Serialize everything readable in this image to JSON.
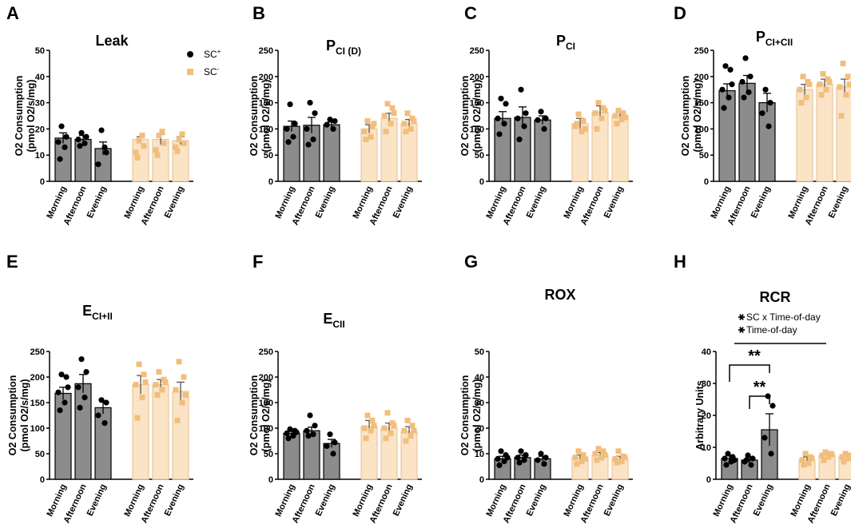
{
  "figure": {
    "categories": [
      "Morning",
      "Afternoon",
      "Evening",
      "Morning",
      "Afternoon",
      "Evening"
    ],
    "legend": [
      {
        "label": "SC",
        "sup": "+",
        "color": "#000000"
      },
      {
        "label": "SC",
        "sup": "-",
        "color": "#F2BE7C"
      }
    ],
    "colors": {
      "sc_plus_bar": "#8C8C8C",
      "sc_minus_bar": "#FBE3C6",
      "sc_plus_dot": "#000000",
      "sc_minus_dot": "#F2BE7C"
    }
  },
  "chart_data": [
    {
      "panel": "A",
      "type": "bar",
      "title": "Leak",
      "title_sub": "",
      "ylabel": [
        "O2 Consumption",
        "(pmol O2/s/mg)"
      ],
      "ylim": [
        0,
        50
      ],
      "yticks": [
        0,
        10,
        20,
        30,
        40,
        50
      ],
      "values": [
        16.5,
        16,
        12.5,
        16,
        16,
        15.5
      ],
      "errors": [
        2,
        1.5,
        2.5,
        1,
        2,
        1.5
      ],
      "points": [
        [
          21,
          17,
          15,
          13,
          8.5
        ],
        [
          18.5,
          17,
          16,
          14.5,
          13.5
        ],
        [
          19.5,
          11,
          6.5,
          13
        ],
        [
          15.5,
          13.5,
          11,
          17.5,
          9
        ],
        [
          17.5,
          14.5,
          12,
          19,
          10
        ],
        [
          16,
          14.5,
          13,
          18,
          11.5
        ]
      ]
    },
    {
      "panel": "B",
      "type": "bar",
      "title": "P",
      "title_sub": "CI (D)",
      "ylabel": [
        "O2 Consumption",
        "(pmol O2/s/mg)"
      ],
      "ylim": [
        0,
        250
      ],
      "yticks": [
        0,
        50,
        100,
        150,
        200,
        250
      ],
      "values": [
        105,
        107,
        108,
        100,
        120,
        110
      ],
      "errors": [
        10,
        15,
        5,
        8,
        10,
        8
      ],
      "points": [
        [
          147,
          110,
          100,
          85,
          75
        ],
        [
          150,
          130,
          100,
          80,
          70
        ],
        [
          118,
          115,
          108,
          100
        ],
        [
          115,
          105,
          95,
          85,
          80,
          110
        ],
        [
          148,
          140,
          125,
          110,
          95,
          130
        ],
        [
          130,
          120,
          110,
          100,
          95,
          115
        ]
      ]
    },
    {
      "panel": "C",
      "type": "bar",
      "title": "P",
      "title_sub": "CI",
      "ylabel": [
        "O2 Consumption",
        "(pmol O2/s/mg)"
      ],
      "ylim": [
        0,
        250
      ],
      "yticks": [
        0,
        50,
        100,
        150,
        200,
        250
      ],
      "values": [
        120,
        122,
        117,
        110,
        132,
        126
      ],
      "errors": [
        13,
        20,
        8,
        10,
        12,
        8
      ],
      "points": [
        [
          158,
          148,
          120,
          110,
          90
        ],
        [
          175,
          130,
          120,
          105,
          80
        ],
        [
          133,
          120,
          117,
          100
        ],
        [
          128,
          115,
          105,
          95,
          110,
          100
        ],
        [
          150,
          140,
          130,
          120,
          100,
          135
        ],
        [
          135,
          130,
          125,
          118,
          110,
          122
        ]
      ]
    },
    {
      "panel": "D",
      "type": "bar",
      "title": "P",
      "title_sub": "CI+CII",
      "ylabel": [
        "O2 Consumption",
        "(pmol O2/s/mg)"
      ],
      "ylim": [
        0,
        250
      ],
      "yticks": [
        0,
        50,
        100,
        150,
        200,
        250
      ],
      "values": [
        173,
        187,
        150,
        175,
        185,
        180
      ],
      "errors": [
        13,
        15,
        18,
        10,
        10,
        15
      ],
      "points": [
        [
          220,
          213,
          175,
          160,
          140,
          185
        ],
        [
          235,
          200,
          190,
          170,
          160
        ],
        [
          175,
          150,
          130,
          105
        ],
        [
          200,
          190,
          175,
          160,
          150,
          185
        ],
        [
          205,
          195,
          185,
          175,
          165,
          190
        ],
        [
          225,
          200,
          180,
          165,
          125,
          185
        ]
      ]
    },
    {
      "panel": "E",
      "type": "bar",
      "title": "E",
      "title_sub": "CI+II",
      "ylabel": [
        "O2 Consumption",
        "(pmol O2/s/mg)"
      ],
      "ylim": [
        0,
        250
      ],
      "yticks": [
        0,
        50,
        100,
        150,
        200,
        250
      ],
      "values": [
        168,
        187,
        140,
        185,
        185,
        172
      ],
      "errors": [
        12,
        18,
        12,
        18,
        10,
        18
      ],
      "points": [
        [
          205,
          200,
          170,
          150,
          135,
          180
        ],
        [
          235,
          210,
          180,
          160,
          140
        ],
        [
          155,
          150,
          125,
          110
        ],
        [
          225,
          205,
          185,
          160,
          120,
          190
        ],
        [
          210,
          195,
          185,
          175,
          165,
          190
        ],
        [
          230,
          200,
          175,
          150,
          115,
          165
        ]
      ]
    },
    {
      "panel": "F",
      "type": "bar",
      "title": "E",
      "title_sub": "CII",
      "ylabel": [
        "O2 Consumption",
        "(pmol O2/s/mg)"
      ],
      "ylim": [
        0,
        250
      ],
      "yticks": [
        0,
        50,
        100,
        150,
        200,
        250
      ],
      "values": [
        90,
        95,
        70,
        103,
        100,
        93
      ],
      "errors": [
        5,
        7,
        8,
        12,
        10,
        10
      ],
      "points": [
        [
          98,
          95,
          90,
          85,
          80,
          92
        ],
        [
          125,
          105,
          95,
          88,
          85
        ],
        [
          88,
          72,
          65,
          50
        ],
        [
          125,
          115,
          100,
          95,
          80,
          105
        ],
        [
          130,
          110,
          100,
          90,
          80,
          105
        ],
        [
          115,
          105,
          95,
          85,
          75,
          95
        ]
      ]
    },
    {
      "panel": "G",
      "type": "bar",
      "title": "ROX",
      "title_sub": "",
      "ylabel": [
        "O2 Consumption",
        "(pmol O2/s/mg)"
      ],
      "ylim": [
        0,
        50
      ],
      "yticks": [
        0,
        10,
        20,
        30,
        40,
        50
      ],
      "values": [
        8,
        8.5,
        8,
        8.5,
        9.5,
        8
      ],
      "errors": [
        1,
        1,
        1,
        1,
        1,
        1
      ],
      "points": [
        [
          11,
          9.5,
          8,
          7,
          5.5,
          8.5
        ],
        [
          11,
          9.5,
          8.5,
          7.5,
          6.5
        ],
        [
          10,
          8.5,
          7.5,
          6
        ],
        [
          11,
          9.5,
          8.5,
          7,
          6,
          8
        ],
        [
          12,
          11,
          10,
          8.5,
          7.5,
          9.5
        ],
        [
          11,
          9,
          8,
          7,
          6.5,
          8.5
        ]
      ]
    },
    {
      "panel": "H",
      "type": "bar",
      "title": "RCR",
      "title_sub": "",
      "ylabel": [
        "Arbitrary Units"
      ],
      "ylim": [
        0,
        40
      ],
      "yticks": [
        0,
        10,
        20,
        30,
        40
      ],
      "values": [
        6.5,
        6,
        15.5,
        6,
        7.5,
        7
      ],
      "errors": [
        1,
        1,
        5,
        1,
        1,
        1
      ],
      "points": [
        [
          8,
          7,
          6.5,
          5.5,
          4.5,
          6
        ],
        [
          7.5,
          6.5,
          5.5,
          4.5,
          6
        ],
        [
          26,
          23,
          13,
          8
        ],
        [
          8,
          7,
          6,
          5,
          4.5,
          6.5
        ],
        [
          8.5,
          8,
          7.5,
          7,
          6,
          7.8
        ],
        [
          8,
          7.5,
          7,
          6.5,
          5.5,
          7.2
        ]
      ],
      "stats": [
        "SC x Time-of-day",
        "Time-of-day"
      ],
      "star": "*",
      "significance": [
        {
          "from": 0,
          "to": 2,
          "label": "**"
        },
        {
          "from": 1,
          "to": 2,
          "label": "**"
        }
      ]
    }
  ]
}
